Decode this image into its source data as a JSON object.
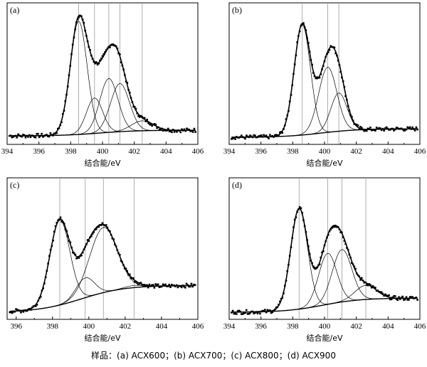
{
  "figure": {
    "caption": "样品：(a) ACX600；(b) ACX700；(c) ACX800；(d) ACX900"
  },
  "chart_data": [
    {
      "type": "line",
      "panel_label": "(a)",
      "xlabel": "结合能/eV",
      "ylabel": "",
      "xlim": [
        394,
        406
      ],
      "ylim": [
        0,
        1
      ],
      "xticks": [
        394,
        396,
        398,
        400,
        402,
        404,
        406
      ],
      "x_direction": "increasing",
      "reference_lines_x": [
        398.5,
        399.5,
        400.4,
        401.1,
        402.5
      ],
      "background": {
        "y_start": 0.06,
        "y_end": 0.1,
        "center": 399.8,
        "width": 1.2
      },
      "peaks": [
        {
          "center": 398.5,
          "height": 0.8,
          "fwhm": 1.25
        },
        {
          "center": 399.5,
          "height": 0.25,
          "fwhm": 1.2
        },
        {
          "center": 400.4,
          "height": 0.38,
          "fwhm": 1.35
        },
        {
          "center": 401.1,
          "height": 0.34,
          "fwhm": 1.4
        },
        {
          "center": 402.5,
          "height": 0.07,
          "fwhm": 1.6
        }
      ],
      "grid": false
    },
    {
      "type": "line",
      "panel_label": "(b)",
      "xlabel": "结合能/eV",
      "ylabel": "",
      "xlim": [
        394,
        406
      ],
      "ylim": [
        0,
        1
      ],
      "xticks": [
        394,
        396,
        398,
        400,
        402,
        404,
        406
      ],
      "x_direction": "increasing",
      "reference_lines_x": [
        398.6,
        400.2,
        400.9
      ],
      "background": {
        "y_start": 0.05,
        "y_end": 0.11,
        "center": 399.8,
        "width": 1.2
      },
      "peaks": [
        {
          "center": 398.6,
          "height": 0.78,
          "fwhm": 1.2
        },
        {
          "center": 400.2,
          "height": 0.46,
          "fwhm": 1.35
        },
        {
          "center": 400.9,
          "height": 0.27,
          "fwhm": 1.2
        }
      ],
      "grid": false
    },
    {
      "type": "line",
      "panel_label": "(c)",
      "xlabel": "结合能/eV",
      "ylabel": "",
      "xlim": [
        395.5,
        406
      ],
      "ylim": [
        0,
        1
      ],
      "xticks": [
        396,
        398,
        400,
        402,
        404,
        406
      ],
      "x_direction": "increasing",
      "reference_lines_x": [
        398.4,
        399.8,
        400.8,
        402.5
      ],
      "background": {
        "y_start": 0.05,
        "y_end": 0.24,
        "center": 399.6,
        "width": 1.2
      },
      "peaks": [
        {
          "center": 398.4,
          "height": 0.6,
          "fwhm": 1.3
        },
        {
          "center": 399.8,
          "height": 0.14,
          "fwhm": 1.2
        },
        {
          "center": 400.8,
          "height": 0.46,
          "fwhm": 1.8
        },
        {
          "center": 402.5,
          "height": 0.015,
          "fwhm": 1.2
        }
      ],
      "grid": false
    },
    {
      "type": "line",
      "panel_label": "(d)",
      "xlabel": "结合能/eV",
      "ylabel": "",
      "xlim": [
        394,
        406
      ],
      "ylim": [
        0,
        1
      ],
      "xticks": [
        394,
        396,
        398,
        400,
        402,
        404,
        406
      ],
      "x_direction": "increasing",
      "reference_lines_x": [
        398.4,
        400.2,
        401.1,
        402.6
      ],
      "background": {
        "y_start": 0.05,
        "y_end": 0.15,
        "center": 399.9,
        "width": 1.2
      },
      "peaks": [
        {
          "center": 398.4,
          "height": 0.71,
          "fwhm": 1.25
        },
        {
          "center": 400.2,
          "height": 0.36,
          "fwhm": 1.35
        },
        {
          "center": 401.1,
          "height": 0.37,
          "fwhm": 1.45
        },
        {
          "center": 402.6,
          "height": 0.1,
          "fwhm": 1.6
        }
      ],
      "grid": false
    }
  ]
}
